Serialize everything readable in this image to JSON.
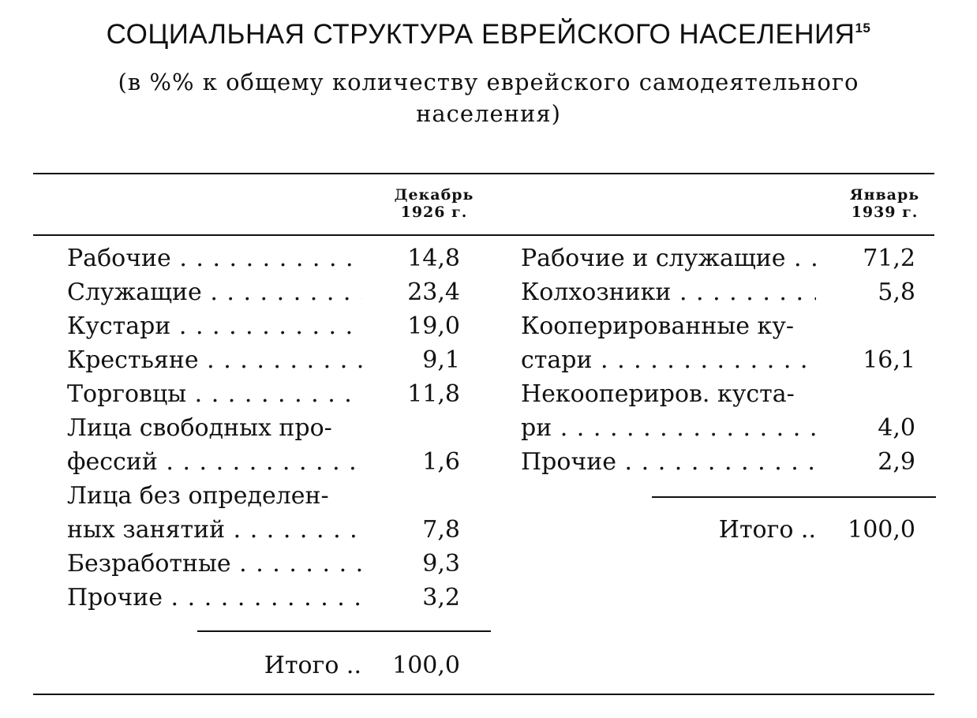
{
  "title": {
    "text": "СОЦИАЛЬНАЯ СТРУКТУРА ЕВРЕЙСКОГО НАСЕЛЕНИЯ",
    "footnote": "15"
  },
  "subtitle": [
    "(в %% к общему количеству еврейского самодеятельного",
    "населения)"
  ],
  "columns": {
    "left_header": [
      "Декабрь",
      "1926 г."
    ],
    "right_header": [
      "Январь",
      "1939 г."
    ]
  },
  "left_rows": [
    {
      "label": [
        "Рабочие"
      ],
      "value": "14,8"
    },
    {
      "label": [
        "Служащие"
      ],
      "value": "23,4"
    },
    {
      "label": [
        "Кустари"
      ],
      "value": "19,0"
    },
    {
      "label": [
        "Крестьяне"
      ],
      "value": "9,1"
    },
    {
      "label": [
        "Торговцы"
      ],
      "value": "11,8"
    },
    {
      "label": [
        "Лица свободных про-",
        "фессий"
      ],
      "value": "1,6"
    },
    {
      "label": [
        "Лица без определен-",
        "ных занятий"
      ],
      "value": "7,8"
    },
    {
      "label": [
        "Безработные"
      ],
      "value": "9,3"
    },
    {
      "label": [
        "Прочие"
      ],
      "value": "3,2"
    }
  ],
  "left_total": {
    "label": "Итого ..",
    "value": "100,0"
  },
  "right_rows": [
    {
      "label": [
        "Рабочие и служащие"
      ],
      "value": "71,2"
    },
    {
      "label": [
        "Колхозники"
      ],
      "value": "5,8"
    },
    {
      "label": [
        "Кооперированные ку-",
        "стари"
      ],
      "value": "16,1"
    },
    {
      "label": [
        "Некоопериров. куста-",
        "ри"
      ],
      "value": "4,0"
    },
    {
      "label": [
        "Прочие"
      ],
      "value": "2,9"
    }
  ],
  "right_total": {
    "label": "Итого ..",
    "value": "100,0"
  }
}
